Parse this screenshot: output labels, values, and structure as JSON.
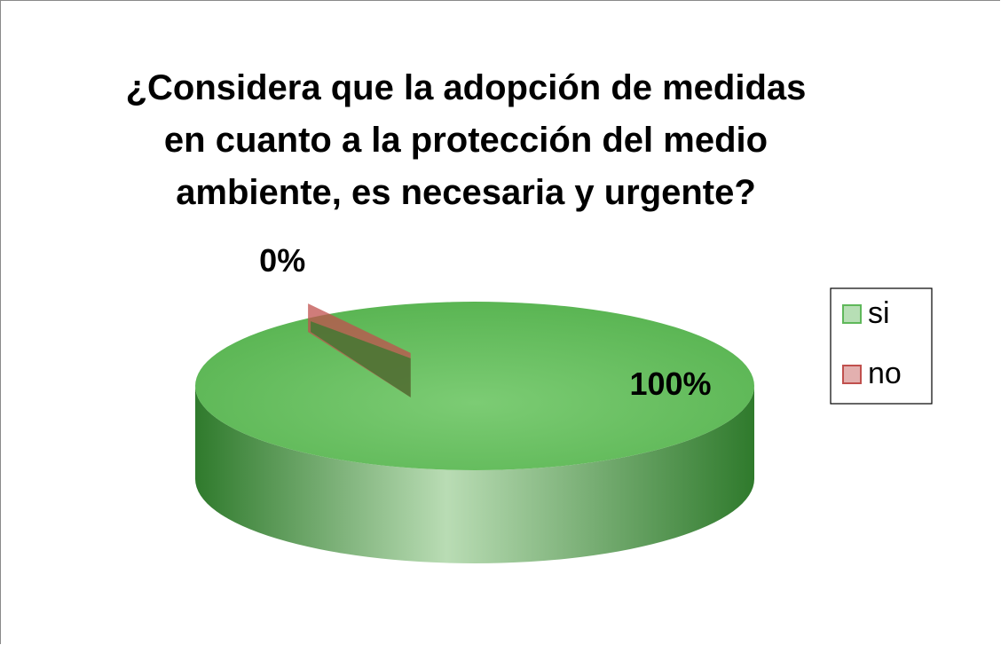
{
  "chart_data": {
    "type": "pie",
    "title": "¿Considera que la adopción de medidas en cuanto a la protección del medio ambiente, es necesaria y urgente?",
    "categories": [
      "si",
      "no"
    ],
    "values": [
      100,
      0
    ],
    "value_labels": [
      "100%",
      "0%"
    ],
    "colors": [
      "#5fb85a",
      "#c0504d"
    ],
    "legend": "right"
  }
}
